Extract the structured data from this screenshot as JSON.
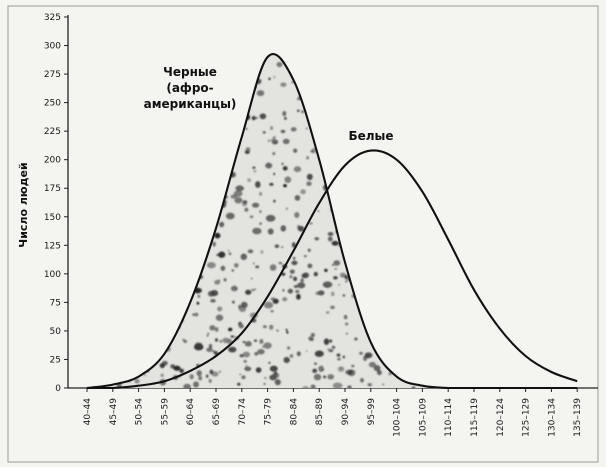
{
  "chart_data": {
    "type": "line",
    "title": "",
    "xlabel": "",
    "ylabel": "Число людей",
    "ylim": [
      0,
      325
    ],
    "yticks": [
      0,
      25,
      50,
      75,
      100,
      125,
      150,
      175,
      200,
      225,
      250,
      275,
      300,
      325
    ],
    "categories": [
      "40–44",
      "45–49",
      "50–54",
      "55–59",
      "60–64",
      "65–69",
      "70–74",
      "75–79",
      "80–84",
      "85–89",
      "90–94",
      "95–99",
      "100–104",
      "105–109",
      "110–114",
      "115–119",
      "120–124",
      "125–129",
      "130–134",
      "135–139"
    ],
    "grid": false,
    "legend": "none",
    "series": [
      {
        "name": "Черные (афро-американцы)",
        "label_lines": [
          "Черные",
          "(афро-",
          "американцы)"
        ],
        "values": [
          0,
          3,
          10,
          30,
          75,
          140,
          220,
          290,
          270,
          200,
          110,
          40,
          10,
          2,
          0,
          0,
          0,
          0,
          0,
          0
        ],
        "fill": "stippled",
        "color": "#111111"
      },
      {
        "name": "Белые",
        "label_lines": [
          "Белые"
        ],
        "values": [
          0,
          0,
          2,
          6,
          15,
          28,
          48,
          80,
          120,
          162,
          195,
          208,
          200,
          172,
          130,
          86,
          52,
          28,
          14,
          6
        ],
        "fill": "none",
        "color": "#111111"
      }
    ]
  }
}
